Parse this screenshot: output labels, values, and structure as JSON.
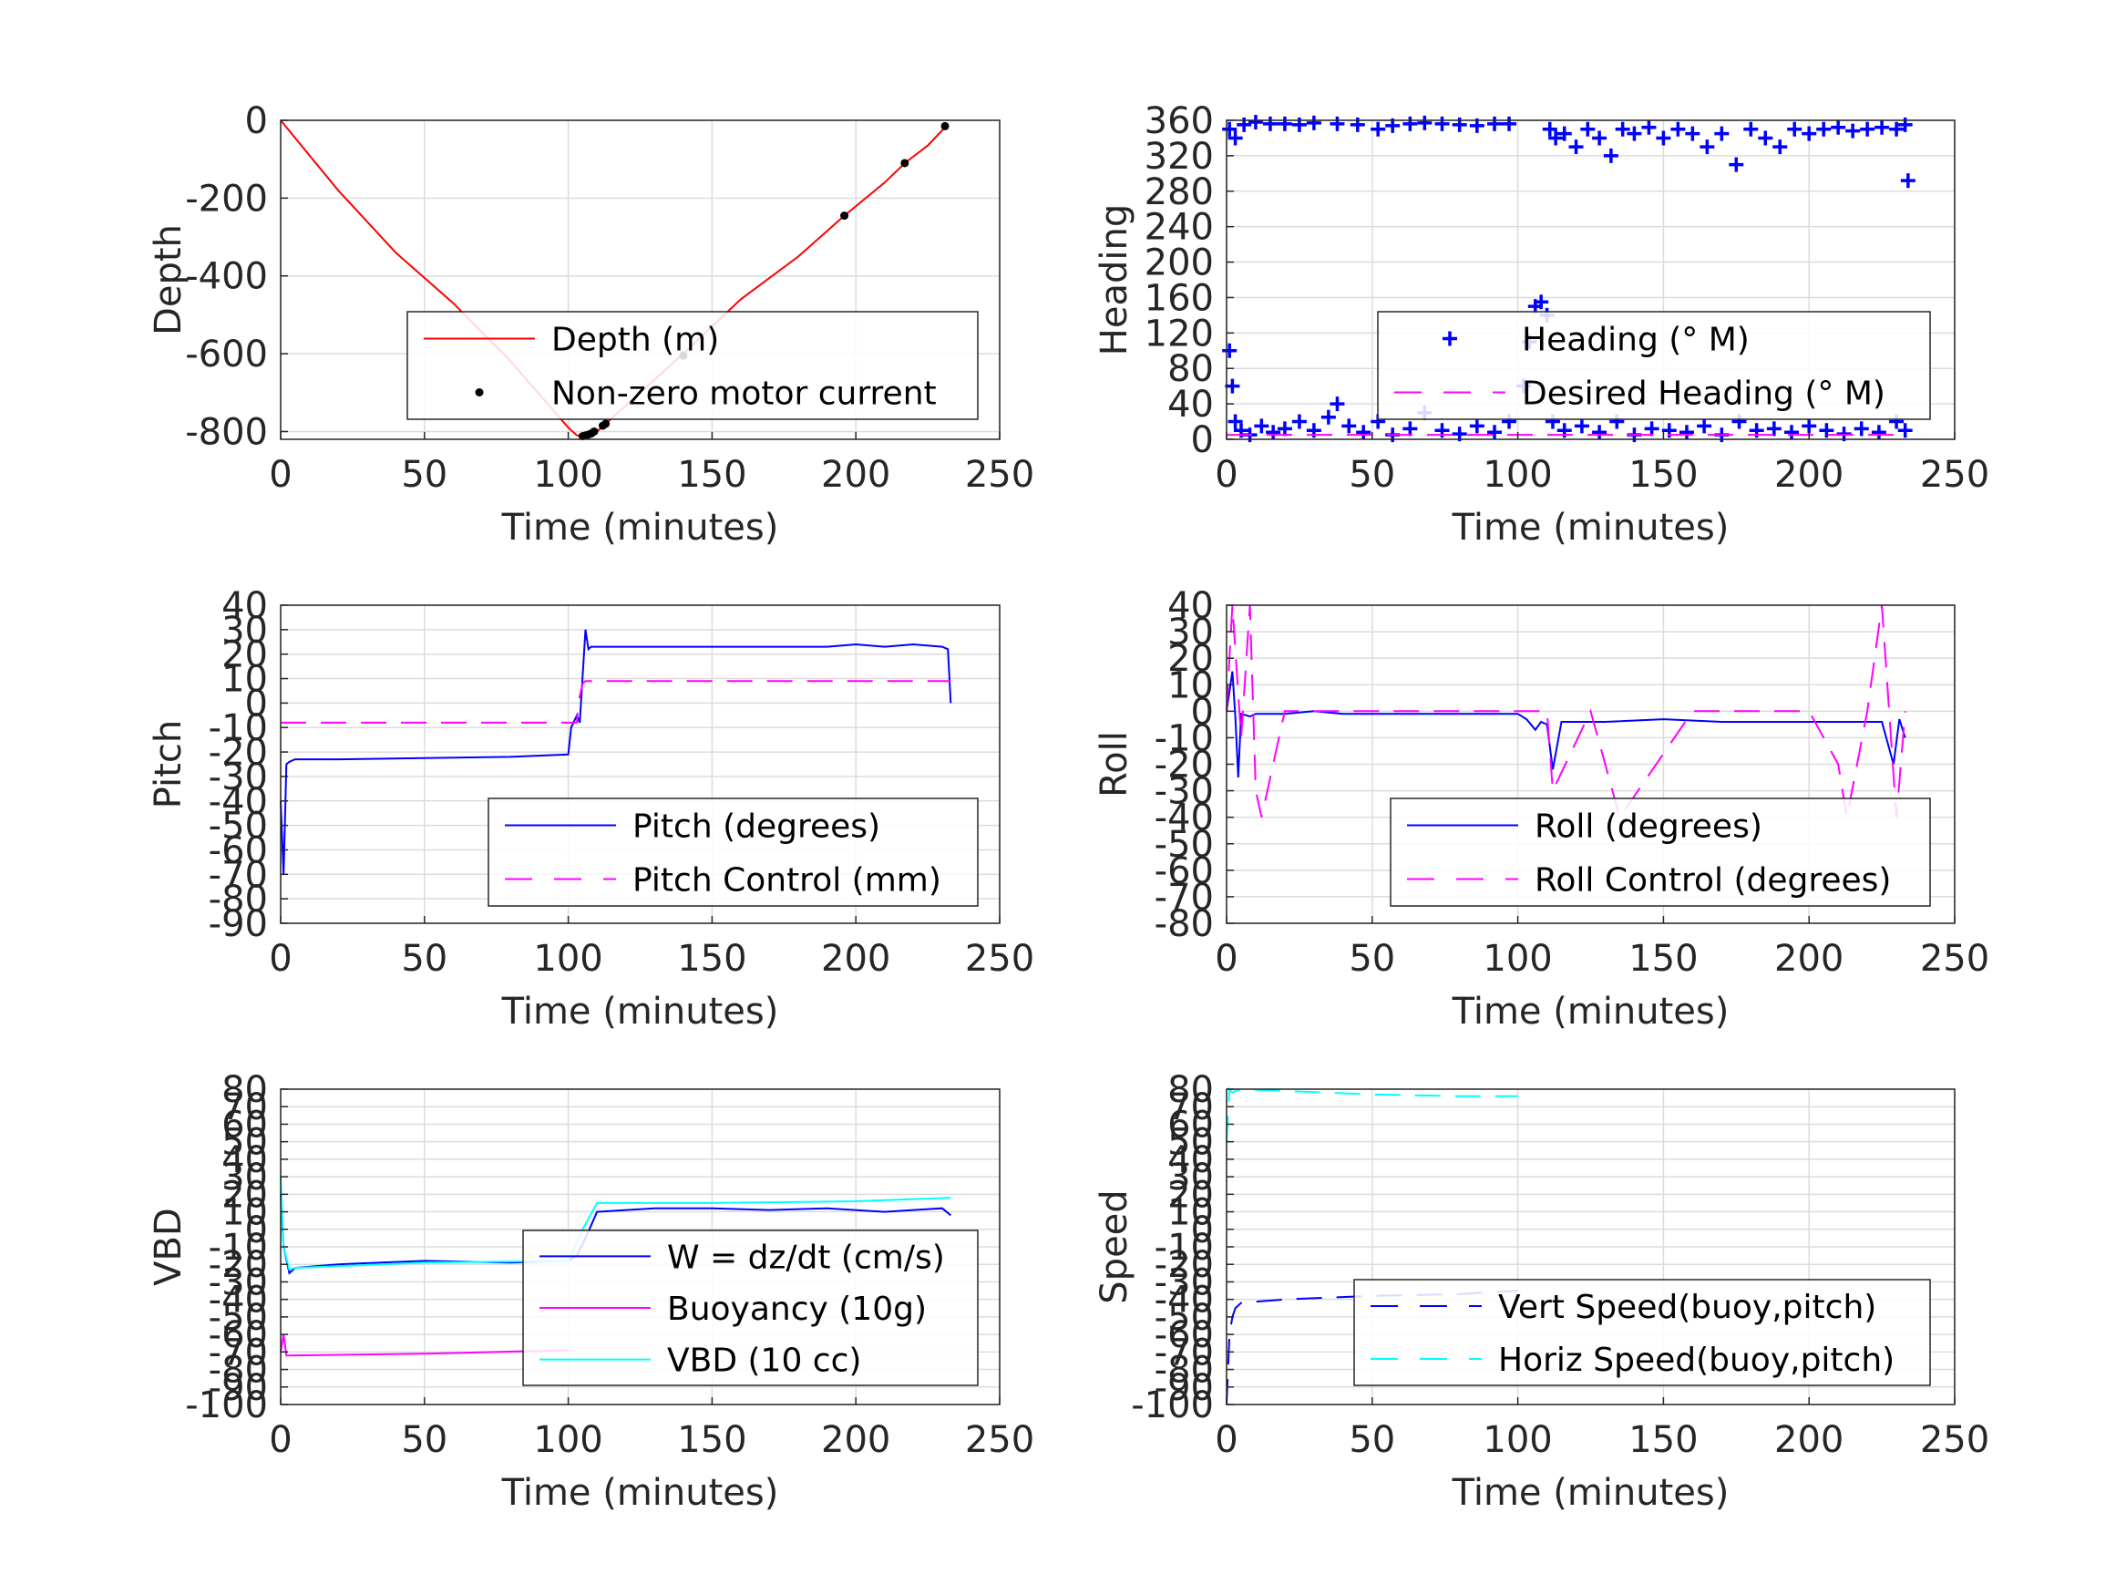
{
  "chart_data": [
    {
      "type": "line",
      "xlabel": "Time (minutes)",
      "ylabel": "Depth",
      "xlim": [
        0,
        250
      ],
      "ylim": [
        -820,
        0
      ],
      "xticks": [
        "0",
        "50",
        "100",
        "150",
        "200",
        "250"
      ],
      "yticks": [
        "0",
        "-200",
        "-400",
        "-600",
        "-800"
      ],
      "grid": true,
      "legend_position": "bottom-right",
      "series": [
        {
          "name": "Depth (m)",
          "style": "solid",
          "color": "#ff0000",
          "x": [
            0,
            20,
            40,
            60,
            80,
            100,
            103,
            106,
            110,
            125,
            140,
            160,
            180,
            196,
            210,
            217,
            225,
            232
          ],
          "y": [
            0,
            -180,
            -340,
            -470,
            -620,
            -790,
            -810,
            -812,
            -800,
            -700,
            -600,
            -460,
            -350,
            -245,
            -160,
            -110,
            -65,
            -10
          ]
        },
        {
          "name": "Non-zero motor current",
          "style": "points",
          "color": "#000000",
          "x": [
            105,
            106,
            107,
            108,
            109,
            112,
            113,
            140,
            196,
            217,
            231
          ],
          "y": [
            -812,
            -810,
            -808,
            -805,
            -800,
            -785,
            -780,
            -605,
            -245,
            -110,
            -15
          ]
        }
      ]
    },
    {
      "type": "scatter",
      "xlabel": "Time (minutes)",
      "ylabel": "Heading",
      "xlim": [
        0,
        250
      ],
      "ylim": [
        0,
        360
      ],
      "xticks": [
        "0",
        "50",
        "100",
        "150",
        "200",
        "250"
      ],
      "yticks": [
        "0",
        "40",
        "80",
        "120",
        "160",
        "200",
        "240",
        "280",
        "320",
        "360"
      ],
      "grid": true,
      "legend_position": "bottom-right",
      "series": [
        {
          "name": "Heading (° M)",
          "style": "plus",
          "color": "#0000ff",
          "x": [
            1,
            2,
            3,
            5,
            8,
            12,
            16,
            20,
            25,
            30,
            35,
            38,
            42,
            47,
            52,
            57,
            63,
            68,
            74,
            80,
            86,
            92,
            97,
            102,
            104,
            106,
            108,
            110,
            112,
            116,
            122,
            128,
            134,
            140,
            146,
            152,
            158,
            164,
            170,
            176,
            182,
            188,
            194,
            200,
            206,
            212,
            218,
            224,
            230,
            233
          ],
          "y": [
            100,
            60,
            20,
            10,
            5,
            15,
            8,
            12,
            20,
            10,
            25,
            40,
            15,
            8,
            20,
            5,
            12,
            30,
            10,
            6,
            15,
            8,
            20,
            60,
            110,
            150,
            155,
            140,
            20,
            10,
            15,
            8,
            20,
            5,
            12,
            10,
            8,
            15,
            5,
            20,
            10,
            12,
            8,
            15,
            10,
            6,
            12,
            8,
            20,
            10
          ]
        },
        {
          "name": "Heading (° M)",
          "style": "plus",
          "color": "#0000ff",
          "x": [
            1,
            3,
            6,
            10,
            15,
            20,
            25,
            30,
            38,
            45,
            52,
            57,
            63,
            68,
            74,
            80,
            86,
            92,
            97,
            111,
            113,
            116,
            120,
            124,
            128,
            132,
            136,
            140,
            145,
            150,
            155,
            160,
            165,
            170,
            175,
            180,
            185,
            190,
            195,
            200,
            205,
            210,
            215,
            220,
            225,
            230,
            233,
            234
          ],
          "y": [
            350,
            340,
            355,
            358,
            356,
            356,
            355,
            357,
            356,
            355,
            350,
            354,
            356,
            357,
            356,
            355,
            354,
            356,
            356,
            350,
            340,
            345,
            330,
            350,
            340,
            320,
            350,
            345,
            352,
            340,
            350,
            345,
            330,
            345,
            310,
            350,
            340,
            330,
            350,
            345,
            350,
            352,
            348,
            350,
            352,
            350,
            355,
            292
          ]
        },
        {
          "name": "Desired Heading (° M)",
          "style": "dash",
          "color": "#ff00ff",
          "x": [
            0,
            110,
            111,
            233
          ],
          "y": [
            5,
            5,
            5,
            5
          ]
        }
      ]
    },
    {
      "type": "line",
      "xlabel": "Time (minutes)",
      "ylabel": "Pitch",
      "xlim": [
        0,
        250
      ],
      "ylim": [
        -90,
        40
      ],
      "xticks": [
        "0",
        "50",
        "100",
        "150",
        "200",
        "250"
      ],
      "yticks": [
        "-90",
        "-80",
        "-70",
        "-60",
        "-50",
        "-40",
        "-30",
        "-20",
        "-10",
        "0",
        "10",
        "20",
        "30",
        "40"
      ],
      "grid": true,
      "legend_position": "bottom-right",
      "series": [
        {
          "name": "Pitch (degrees)",
          "style": "solid",
          "color": "#0000ff",
          "x": [
            0,
            1,
            2,
            3,
            5,
            20,
            50,
            80,
            100,
            101,
            103,
            104,
            106,
            107,
            108,
            110,
            130,
            150,
            170,
            190,
            200,
            210,
            220,
            230,
            232,
            233
          ],
          "y": [
            -40,
            -70,
            -25,
            -24,
            -23,
            -23,
            -22.5,
            -22,
            -21,
            -10,
            -5,
            -8,
            30,
            22,
            23,
            23,
            23,
            23,
            23,
            23,
            24,
            23,
            24,
            23,
            22,
            0
          ]
        },
        {
          "name": "Pitch Control (mm)",
          "style": "dash",
          "color": "#ff00ff",
          "x": [
            0,
            103,
            103.5,
            105,
            106,
            233
          ],
          "y": [
            -8,
            -8,
            0,
            8,
            9,
            9
          ]
        }
      ]
    },
    {
      "type": "line",
      "xlabel": "Time (minutes)",
      "ylabel": "Roll",
      "xlim": [
        0,
        250
      ],
      "ylim": [
        -80,
        40
      ],
      "xticks": [
        "0",
        "50",
        "100",
        "150",
        "200",
        "250"
      ],
      "yticks": [
        "-80",
        "-70",
        "-60",
        "-50",
        "-40",
        "-30",
        "-20",
        "-10",
        "0",
        "10",
        "20",
        "30",
        "40"
      ],
      "grid": true,
      "legend_position": "bottom-right",
      "series": [
        {
          "name": "Roll (degrees)",
          "style": "solid",
          "color": "#0000ff",
          "x": [
            0,
            2,
            3,
            4,
            5,
            8,
            10,
            20,
            30,
            40,
            50,
            60,
            70,
            80,
            90,
            100,
            103,
            106,
            108,
            110,
            112,
            115,
            130,
            150,
            170,
            190,
            210,
            225,
            229,
            231,
            233
          ],
          "y": [
            0,
            15,
            -2,
            -25,
            -1,
            -2,
            -1,
            -1,
            0,
            -1,
            -1,
            -1,
            -1,
            -1,
            -1,
            -1,
            -3,
            -7,
            -4,
            -5,
            -22,
            -4,
            -4,
            -3,
            -4,
            -4,
            -4,
            -4,
            -20,
            -3,
            -10
          ]
        },
        {
          "name": "Roll Control (degrees)",
          "style": "dash",
          "color": "#ff00ff",
          "x": [
            0,
            2,
            5,
            8,
            10,
            12,
            20,
            40,
            60,
            80,
            100,
            110,
            112,
            125,
            135,
            160,
            180,
            200,
            210,
            213,
            220,
            225,
            230,
            233
          ],
          "y": [
            0,
            40,
            -10,
            40,
            -30,
            -40,
            0,
            0,
            0,
            0,
            0,
            0,
            -30,
            0,
            -40,
            0,
            0,
            0,
            -20,
            -40,
            0,
            40,
            -40,
            0
          ]
        }
      ]
    },
    {
      "type": "line",
      "xlabel": "Time (minutes)",
      "ylabel": "VBD",
      "xlim": [
        0,
        250
      ],
      "ylim": [
        -100,
        80
      ],
      "xticks": [
        "0",
        "50",
        "100",
        "150",
        "200",
        "250"
      ],
      "yticks": [
        "-100",
        "-90",
        "-80",
        "-70",
        "-60",
        "-50",
        "-40",
        "-30",
        "-20",
        "-10",
        "0",
        "10",
        "20",
        "30",
        "40",
        "50",
        "60",
        "70",
        "80"
      ],
      "grid": true,
      "legend_position": "bottom-right",
      "series": [
        {
          "name": "W = dz/dt (cm/s)",
          "style": "solid",
          "color": "#0000ff",
          "x": [
            0,
            1,
            3,
            5,
            20,
            50,
            80,
            100,
            103,
            106,
            110,
            130,
            150,
            170,
            190,
            210,
            220,
            230,
            233
          ],
          "y": [
            20,
            -10,
            -25,
            -22,
            -20,
            -18,
            -19,
            -18,
            -15,
            -5,
            10,
            12,
            12,
            11,
            12,
            10,
            11,
            12,
            8
          ]
        },
        {
          "name": "Buoyancy (10g)",
          "style": "solid",
          "color": "#ff00ff",
          "x": [
            0,
            1,
            2,
            50,
            100
          ],
          "y": [
            -70,
            -60,
            -72,
            -71,
            -69
          ]
        },
        {
          "name": "VBD (10 cc)",
          "style": "solid",
          "color": "#00ffff",
          "x": [
            0,
            1,
            3,
            5,
            50,
            100,
            105,
            110,
            150,
            200,
            233
          ],
          "y": [
            30,
            -10,
            -23,
            -22,
            -19,
            -18,
            0,
            15,
            15,
            16,
            18
          ]
        }
      ]
    },
    {
      "type": "line",
      "xlabel": "Time (minutes)",
      "ylabel": "Speed",
      "xlim": [
        0,
        250
      ],
      "ylim": [
        -100,
        80
      ],
      "xticks": [
        "0",
        "50",
        "100",
        "150",
        "200",
        "250"
      ],
      "yticks": [
        "-100",
        "-90",
        "-80",
        "-70",
        "-60",
        "-50",
        "-40",
        "-30",
        "-20",
        "-10",
        "0",
        "10",
        "20",
        "30",
        "40",
        "50",
        "60",
        "70",
        "80"
      ],
      "grid": true,
      "legend_position": "bottom-right",
      "series": [
        {
          "name": "Vert Speed(buoy,pitch)",
          "style": "dash",
          "color": "#0000ff",
          "x": [
            0,
            1,
            2,
            3,
            5,
            20,
            50,
            80,
            100
          ],
          "y": [
            -100,
            -60,
            -50,
            -45,
            -42,
            -40,
            -38,
            -37,
            -35
          ]
        },
        {
          "name": "Horiz Speed(buoy,pitch)",
          "style": "dash",
          "color": "#00ffff",
          "x": [
            0,
            1,
            2,
            3,
            5,
            20,
            50,
            80,
            100
          ],
          "y": [
            50,
            80,
            78,
            79,
            80,
            79,
            77,
            76,
            76
          ]
        }
      ]
    }
  ]
}
